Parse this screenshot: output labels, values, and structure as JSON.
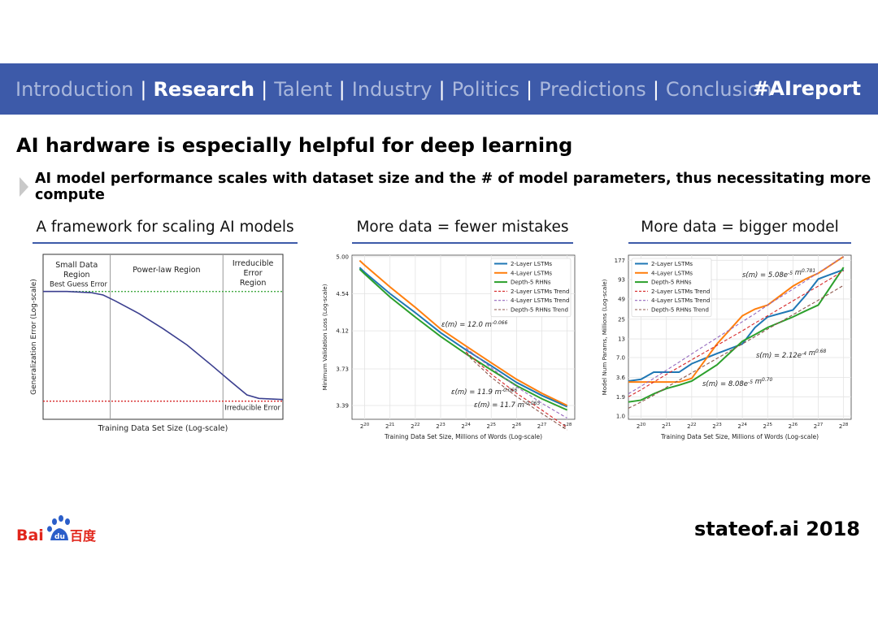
{
  "nav": {
    "items": [
      {
        "label": "Introduction",
        "active": false
      },
      {
        "label": "Research",
        "active": true
      },
      {
        "label": "Talent",
        "active": false
      },
      {
        "label": "Industry",
        "active": false
      },
      {
        "label": "Politics",
        "active": false
      },
      {
        "label": "Predictions",
        "active": false
      },
      {
        "label": "Conclusion",
        "active": false
      }
    ],
    "separator": "|",
    "hashtag": "#AIreport"
  },
  "headline": "AI hardware is especially helpful for deep learning",
  "subheadline": "AI model performance scales with dataset size and the # of model parameters, thus necessitating more compute",
  "panels": {
    "left": {
      "title": "A framework for scaling AI models"
    },
    "middle": {
      "title": "More data = fewer mistakes"
    },
    "right": {
      "title": "More data = bigger model"
    }
  },
  "logo": {
    "text": "Bai",
    "text2": "百度"
  },
  "footer": "stateof.ai 2018",
  "colors": {
    "nav_bg": "#3d5aa9",
    "blue": "#1f77b4",
    "orange": "#ff7f0e",
    "green": "#2ca02c",
    "brown": "#8c564b",
    "pink": "#d62728",
    "purple": "#9467bd"
  },
  "chart_data": [
    {
      "type": "line",
      "xlabel": "Training Data Set Size (Log-scale)",
      "ylabel": "Generalization Error (Log-scale)",
      "regions": [
        "Small Data Region",
        "Power-law Region",
        "Irreducible Error Region"
      ],
      "region_labels": {
        "small": [
          "Small Data",
          "Region"
        ],
        "power": [
          "Power-law Region"
        ],
        "irreducible": [
          "Irreducible",
          "Error",
          "Region"
        ]
      },
      "reference_lines": [
        {
          "label": "Best Guess Error",
          "color": "#2ca02c",
          "style": "dotted"
        },
        {
          "label": "Irreducible Error",
          "color": "#d62728",
          "style": "dotted"
        }
      ],
      "x": [
        0,
        0.1,
        0.2,
        0.25,
        0.3,
        0.4,
        0.5,
        0.6,
        0.7,
        0.78,
        0.85,
        0.9,
        1.0
      ],
      "series": [
        {
          "values": [
            0.96,
            0.96,
            0.95,
            0.93,
            0.88,
            0.77,
            0.64,
            0.5,
            0.33,
            0.19,
            0.07,
            0.04,
            0.03
          ]
        }
      ],
      "ylim": [
        0,
        1
      ]
    },
    {
      "type": "line",
      "xlabel": "Training Data Set Size, Millions of Words (Log-scale)",
      "ylabel": "Minimum Validation Loss (Log-scale)",
      "x_ticks": [
        "2^20",
        "2^21",
        "2^22",
        "2^23",
        "2^24",
        "2^25",
        "2^26",
        "2^27",
        "2^28"
      ],
      "y_ticks": [
        3.39,
        3.73,
        4.12,
        4.54,
        5.0
      ],
      "x": [
        19.8,
        20,
        21,
        22,
        23,
        24,
        25,
        26,
        27,
        28
      ],
      "series": [
        {
          "name": "2-Layer LSTMs",
          "color": "#1f77b4",
          "values": [
            4.86,
            4.8,
            4.54,
            4.32,
            4.1,
            3.92,
            3.76,
            3.6,
            3.48,
            3.38
          ]
        },
        {
          "name": "4-Layer LSTMs",
          "color": "#ff7f0e",
          "values": [
            4.95,
            4.89,
            4.62,
            4.38,
            4.14,
            3.96,
            3.79,
            3.63,
            3.5,
            3.39
          ]
        },
        {
          "name": "Depth-5 RHNs",
          "color": "#2ca02c",
          "values": [
            4.84,
            4.78,
            4.5,
            4.27,
            4.06,
            3.88,
            3.72,
            3.57,
            3.45,
            3.35
          ]
        },
        {
          "name": "2-Layer LSTMs Trend",
          "color": "#d62728",
          "dashed": true,
          "values": [
            null,
            null,
            null,
            null,
            null,
            3.9,
            3.68,
            3.5,
            3.35,
            3.2
          ]
        },
        {
          "name": "4-Layer LSTMs Trend",
          "color": "#9467bd",
          "dashed": true,
          "values": [
            null,
            null,
            null,
            null,
            null,
            3.94,
            3.74,
            3.56,
            3.41,
            3.28
          ]
        },
        {
          "name": "Depth-5 RHNs Trend",
          "color": "#8c564b",
          "dashed": true,
          "values": [
            null,
            null,
            null,
            null,
            null,
            3.88,
            3.65,
            3.47,
            3.32,
            3.18
          ]
        }
      ],
      "annotations": [
        "ε(m) = 12.0 m^-0.066",
        "ε(m) = 11.9 m^-0.066",
        "ε(m) = 11.7 m^-0.065"
      ],
      "ylim": [
        3.27,
        5.02
      ],
      "legend": "top-right",
      "grid": true
    },
    {
      "type": "line",
      "xlabel": "Training Data Set Size, Millions of Words (Log-scale)",
      "ylabel": "Model Num Params, Millions (Log-scale)",
      "x_ticks": [
        "2^20",
        "2^21",
        "2^22",
        "2^23",
        "2^24",
        "2^25",
        "2^26",
        "2^27",
        "2^28"
      ],
      "y_ticks": [
        1.0,
        1.9,
        3.6,
        7.0,
        13,
        25,
        49,
        93,
        177
      ],
      "x": [
        19.5,
        20,
        20.5,
        21,
        21.5,
        22,
        23,
        24,
        24.5,
        25,
        26,
        26.5,
        27,
        28
      ],
      "series": [
        {
          "name": "2-Layer LSTMs",
          "color": "#1f77b4",
          "values": [
            3.2,
            3.4,
            4.3,
            4.3,
            4.3,
            5.7,
            8,
            11,
            19,
            27,
            34,
            55,
            95,
            130
          ]
        },
        {
          "name": "4-Layer LSTMs",
          "color": "#ff7f0e",
          "values": [
            3.1,
            3.1,
            3.1,
            3.1,
            3.1,
            3.5,
            11,
            28,
            35,
            40,
            75,
            95,
            115,
            200
          ]
        },
        {
          "name": "Depth-5 RHNs",
          "color": "#2ca02c",
          "values": [
            1.6,
            1.7,
            2.1,
            2.5,
            2.8,
            3.2,
            5.5,
            12,
            15,
            19,
            27,
            33,
            40,
            140
          ]
        },
        {
          "name": "2-Layer LSTMs Trend",
          "color": "#d62728",
          "dashed": true,
          "values": [
            1.9,
            2.4,
            3.1,
            4.0,
            5.1,
            6.5,
            10.5,
            17,
            22,
            28,
            46,
            59,
            75,
            125
          ]
        },
        {
          "name": "4-Layer LSTMs Trend",
          "color": "#9467bd",
          "dashed": true,
          "values": [
            2.1,
            2.7,
            3.5,
            4.6,
            6.0,
            7.9,
            13.5,
            23,
            30,
            40,
            68,
            89,
            117,
            200
          ]
        },
        {
          "name": "Depth-5 RHNs Trend",
          "color": "#8c564b",
          "dashed": true,
          "values": [
            1.3,
            1.6,
            2.0,
            2.6,
            3.3,
            4.2,
            6.8,
            11,
            14,
            18,
            29,
            37,
            47,
            77
          ]
        }
      ],
      "annotations": [
        "s(m) = 5.08e^-5 m^0.781",
        "s(m) = 2.12e^-4 m^0.68",
        "s(m) = 8.08e^-5 m^0.70"
      ],
      "ylim": [
        0.9,
        210
      ],
      "legend": "top-left",
      "grid": true
    }
  ]
}
